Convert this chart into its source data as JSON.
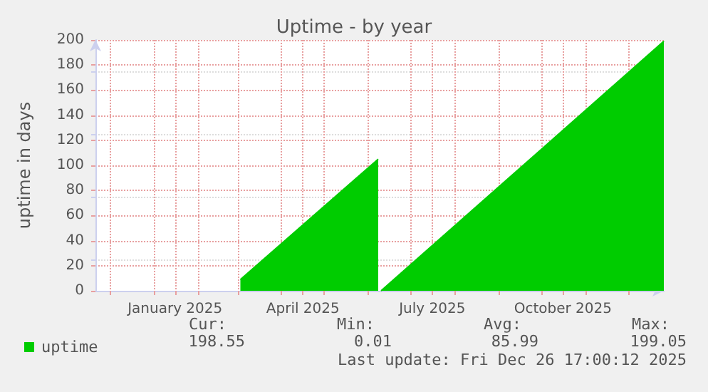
{
  "chart_data": {
    "type": "area",
    "title": "Uptime - by year",
    "ylabel": "uptime in days",
    "x": [
      "2025-03-03",
      "2025-06-08",
      "2025-06-09",
      "2025-06-10",
      "2025-12-26"
    ],
    "series": [
      {
        "name": "uptime",
        "color": "#00cc00",
        "values": [
          9,
          105,
          null,
          0,
          199
        ]
      }
    ],
    "xlim": [
      "2024-11-21",
      "2025-12-26"
    ],
    "xticks": [
      {
        "value": "2024-12-01",
        "label": null
      },
      {
        "value": "2025-01-01",
        "label": null
      },
      {
        "value": "2025-01-16",
        "label": "January 2025"
      },
      {
        "value": "2025-02-01",
        "label": null
      },
      {
        "value": "2025-03-01",
        "label": null
      },
      {
        "value": "2025-04-01",
        "label": null
      },
      {
        "value": "2025-04-16",
        "label": "April 2025"
      },
      {
        "value": "2025-05-01",
        "label": null
      },
      {
        "value": "2025-06-01",
        "label": null
      },
      {
        "value": "2025-07-01",
        "label": null
      },
      {
        "value": "2025-07-16",
        "label": "July 2025"
      },
      {
        "value": "2025-08-01",
        "label": null
      },
      {
        "value": "2025-09-01",
        "label": null
      },
      {
        "value": "2025-10-01",
        "label": null
      },
      {
        "value": "2025-10-16",
        "label": "October 2025"
      },
      {
        "value": "2025-11-01",
        "label": null
      },
      {
        "value": "2025-12-01",
        "label": null
      }
    ],
    "ylim": [
      0,
      200
    ],
    "yticks": [
      0,
      20,
      40,
      60,
      80,
      100,
      120,
      140,
      160,
      180,
      200
    ],
    "grid": true,
    "legend": "bottom left",
    "annotations": [
      "Cur:",
      "Min:",
      "Avg:",
      "Max:",
      "198.55",
      "0.01",
      "85.99",
      "199.05",
      "Last update: Fri Dec 26 17:00:12 2025"
    ]
  }
}
